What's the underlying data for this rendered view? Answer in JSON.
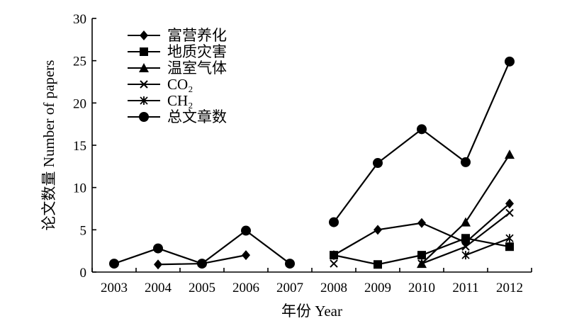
{
  "chart_data": {
    "type": "line",
    "xlabel": "年份 Year",
    "ylabel": "论文数量 Number of papers",
    "ylim": [
      0,
      30
    ],
    "yticks": [
      0,
      5,
      10,
      15,
      20,
      25,
      30
    ],
    "categories": [
      "2003",
      "2004",
      "2005",
      "2006",
      "2007",
      "2008",
      "2009",
      "2010",
      "2011",
      "2012"
    ],
    "legend_position": "top-left",
    "grid": false,
    "series": [
      {
        "name": "富营养化",
        "marker": "diamond",
        "segments": [
          {
            "x": [
              "2004",
              "2005",
              "2006"
            ],
            "y": [
              0.9,
              1.0,
              2.0
            ]
          },
          {
            "x": [
              "2008",
              "2009",
              "2010",
              "2011",
              "2012"
            ],
            "y": [
              2.0,
              5.0,
              5.8,
              3.5,
              8.1
            ]
          }
        ]
      },
      {
        "name": "地质灾害",
        "marker": "square",
        "segments": [
          {
            "x": [
              "2008",
              "2009",
              "2010",
              "2011",
              "2012"
            ],
            "y": [
              2.0,
              0.9,
              2.0,
              4.0,
              3.0
            ]
          }
        ]
      },
      {
        "name": "温室气体",
        "marker": "triangle",
        "segments": [
          {
            "x": [
              "2010",
              "2011",
              "2012"
            ],
            "y": [
              1.0,
              5.9,
              13.9
            ]
          }
        ]
      },
      {
        "name": "CO₂",
        "marker": "x",
        "segments": [
          {
            "x": [
              "2008"
            ],
            "y": [
              1.0
            ]
          },
          {
            "x": [
              "2010",
              "2011",
              "2012"
            ],
            "y": [
              1.0,
              3.0,
              7.0
            ]
          }
        ]
      },
      {
        "name": "CH₂",
        "marker": "asterisk",
        "segments": [
          {
            "x": [
              "2011",
              "2012"
            ],
            "y": [
              2.0,
              4.0
            ]
          }
        ]
      },
      {
        "name": "总文章数",
        "marker": "circle",
        "segments": [
          {
            "x": [
              "2003",
              "2004",
              "2005",
              "2006",
              "2007"
            ],
            "y": [
              1.0,
              2.8,
              1.0,
              4.9,
              1.0
            ]
          },
          {
            "x": [
              "2008",
              "2009",
              "2010",
              "2011",
              "2012"
            ],
            "y": [
              5.9,
              12.9,
              16.9,
              13.0,
              24.9
            ]
          }
        ]
      }
    ]
  }
}
